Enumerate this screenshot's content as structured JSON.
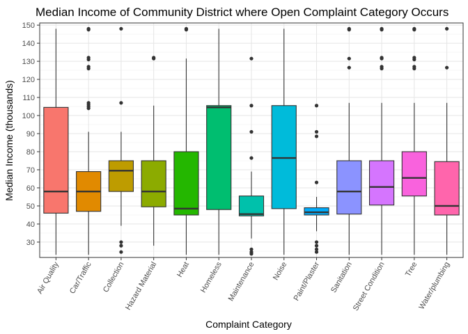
{
  "chart_data": {
    "type": "box",
    "title": "Median Income of Community District where Open Complaint Category Occurs",
    "xlabel": "Complaint Category",
    "ylabel": "Median Income (thousands)",
    "ylim": [
      20,
      150
    ],
    "yticks": [
      20,
      30,
      40,
      50,
      60,
      70,
      80,
      90,
      100,
      110,
      120,
      130,
      140,
      150
    ],
    "grid": true,
    "legend": "none",
    "categories": [
      "Air Quality",
      "Car/Traffic",
      "Collection",
      "Hazard Material",
      "Heat",
      "Homeless",
      "Maintenance",
      "Noise",
      "Paint/Plaster",
      "Sanitation",
      "Street Condition",
      "Tree",
      "Water/plumbing"
    ],
    "boxes": [
      {
        "category": "Air Quality",
        "whisker_low": 23,
        "q1": 46,
        "median": 58,
        "q3": 104.5,
        "whisker_high": 148,
        "outliers": [],
        "color": "#F8766D"
      },
      {
        "category": "Car/Traffic",
        "whisker_low": 23,
        "q1": 47,
        "median": 58,
        "q3": 69,
        "whisker_high": 91,
        "outliers": [
          104,
          105,
          106,
          107,
          126,
          127,
          131,
          132,
          147.5,
          148
        ],
        "color": "#E18A00"
      },
      {
        "category": "Collection",
        "whisker_low": 39,
        "q1": 58,
        "median": 69.5,
        "q3": 75,
        "whisker_high": 91,
        "outliers": [
          24.5,
          28,
          30,
          107,
          148
        ],
        "color": "#BE9C00"
      },
      {
        "category": "Hazard Material",
        "whisker_low": 28,
        "q1": 49.5,
        "median": 58,
        "q3": 75,
        "whisker_high": 105.5,
        "outliers": [
          131.5,
          132
        ],
        "color": "#8CAB00"
      },
      {
        "category": "Heat",
        "whisker_low": 23,
        "q1": 45,
        "median": 48.5,
        "q3": 80,
        "whisker_high": 131.5,
        "outliers": [
          147.5,
          148
        ],
        "color": "#24B700"
      },
      {
        "category": "Homeless",
        "whisker_low": 23,
        "q1": 48,
        "median": 104.5,
        "q3": 105.5,
        "whisker_high": 148,
        "outliers": [],
        "color": "#00BE70"
      },
      {
        "category": "Maintenance",
        "whisker_low": 32,
        "q1": 44.5,
        "median": 45.5,
        "q3": 55.5,
        "whisker_high": 69,
        "outliers": [
          23.5,
          24.5,
          26,
          76.5,
          91,
          105.5,
          131.5
        ],
        "color": "#00C1AB"
      },
      {
        "category": "Noise",
        "whisker_low": 23,
        "q1": 48.5,
        "median": 76.5,
        "q3": 105.5,
        "whisker_high": 148,
        "outliers": [],
        "color": "#00BBDA"
      },
      {
        "category": "Paint/Plaster",
        "whisker_low": 36,
        "q1": 45,
        "median": 46.5,
        "q3": 49,
        "whisker_high": 55,
        "outliers": [
          24.5,
          26,
          28,
          30,
          63,
          88.5,
          91,
          105.5
        ],
        "color": "#00ACFC"
      },
      {
        "category": "Sanitation",
        "whisker_low": 23,
        "q1": 45.5,
        "median": 58,
        "q3": 75,
        "whisker_high": 107,
        "outliers": [
          126.5,
          131.5,
          147.5,
          148
        ],
        "color": "#8B93FF"
      },
      {
        "category": "Street Condition",
        "whisker_low": 23,
        "q1": 50.5,
        "median": 60.5,
        "q3": 75,
        "whisker_high": 107,
        "outliers": [
          126,
          127,
          131.5,
          132,
          147.5,
          148
        ],
        "color": "#D575FE"
      },
      {
        "category": "Tree",
        "whisker_low": 23,
        "q1": 55.5,
        "median": 65.5,
        "q3": 80,
        "whisker_high": 107,
        "outliers": [
          126,
          127,
          131,
          132,
          147.5,
          148
        ],
        "color": "#F962DD"
      },
      {
        "category": "Water/plumbing",
        "whisker_low": 23,
        "q1": 45,
        "median": 50,
        "q3": 74.5,
        "whisker_high": 107,
        "outliers": [
          126.5,
          148
        ],
        "color": "#FF65AC"
      }
    ]
  }
}
